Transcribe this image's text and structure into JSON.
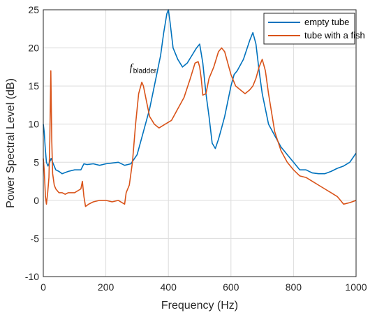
{
  "chart_data": {
    "type": "line",
    "title": "",
    "xlabel": "Frequency (Hz)",
    "ylabel": "Power Spectral Level (dB)",
    "xlim": [
      0,
      1000
    ],
    "ylim": [
      -10,
      25
    ],
    "xticks": [
      0,
      200,
      400,
      600,
      800,
      1000
    ],
    "yticks": [
      -10,
      -5,
      0,
      5,
      10,
      15,
      20,
      25
    ],
    "grid": true,
    "legend_position": "top-right",
    "annotation": {
      "main": "f",
      "sub": "bladder",
      "x": 312,
      "y": 17
    },
    "series": [
      {
        "name": "empty tube",
        "color": "#0072BD",
        "x": [
          0,
          3,
          6,
          10,
          15,
          20,
          25,
          30,
          40,
          50,
          60,
          80,
          100,
          120,
          130,
          140,
          160,
          180,
          200,
          220,
          240,
          260,
          280,
          300,
          320,
          340,
          360,
          375,
          385,
          395,
          400,
          405,
          415,
          430,
          445,
          460,
          475,
          490,
          500,
          510,
          520,
          530,
          540,
          550,
          560,
          570,
          580,
          590,
          600,
          610,
          620,
          640,
          660,
          670,
          680,
          690,
          700,
          720,
          740,
          760,
          780,
          800,
          820,
          840,
          860,
          880,
          900,
          920,
          940,
          960,
          980,
          1000
        ],
        "y": [
          10,
          9,
          7,
          5,
          4.5,
          5,
          5.5,
          5,
          4,
          3.8,
          3.5,
          3.8,
          4,
          4,
          4.8,
          4.7,
          4.8,
          4.6,
          4.8,
          4.9,
          5,
          4.6,
          4.8,
          6,
          9,
          12,
          16,
          19,
          22,
          24.5,
          25,
          23.5,
          20,
          18.5,
          17.5,
          18,
          19,
          20,
          20.5,
          18,
          14,
          11,
          7.5,
          6.8,
          8,
          9.5,
          11,
          13,
          15,
          16.5,
          17,
          18.5,
          21,
          22,
          20.5,
          17,
          14,
          10,
          8.5,
          7,
          6,
          5,
          4,
          4,
          3.6,
          3.5,
          3.5,
          3.8,
          4.2,
          4.5,
          5,
          6.2
        ]
      },
      {
        "name": "tube with a fish",
        "color": "#D95319",
        "x": [
          0,
          3,
          7,
          10,
          14,
          18,
          21,
          24,
          27,
          30,
          35,
          40,
          50,
          60,
          70,
          80,
          100,
          120,
          125,
          130,
          135,
          145,
          160,
          180,
          200,
          220,
          240,
          260,
          265,
          275,
          285,
          295,
          305,
          315,
          320,
          330,
          340,
          355,
          370,
          390,
          410,
          430,
          450,
          470,
          485,
          495,
          500,
          505,
          510,
          520,
          530,
          545,
          560,
          570,
          580,
          590,
          600,
          615,
          630,
          645,
          660,
          670,
          680,
          690,
          700,
          710,
          720,
          740,
          760,
          780,
          800,
          820,
          840,
          860,
          880,
          900,
          920,
          940,
          960,
          980,
          1000
        ],
        "y": [
          5.5,
          4,
          0.5,
          -0.5,
          1,
          3,
          8,
          17,
          8,
          3.5,
          2,
          1.5,
          1,
          1,
          0.8,
          1,
          1,
          1.5,
          2.5,
          0.5,
          -0.8,
          -0.5,
          -0.2,
          0,
          0,
          -0.2,
          0,
          -0.5,
          1,
          2,
          5,
          10,
          14,
          15.5,
          15,
          13,
          11,
          10,
          9.5,
          10,
          10.5,
          12,
          13.5,
          16,
          18,
          18.2,
          17.5,
          16,
          13.8,
          14,
          16,
          17.5,
          19.5,
          20,
          19.5,
          18,
          16.5,
          15,
          14.5,
          14,
          14.5,
          15,
          16,
          17.5,
          18.5,
          17,
          14,
          9,
          6.5,
          5,
          4,
          3.2,
          3,
          2.5,
          2,
          1.5,
          1,
          0.5,
          -0.5,
          -0.3,
          0
        ]
      }
    ]
  }
}
